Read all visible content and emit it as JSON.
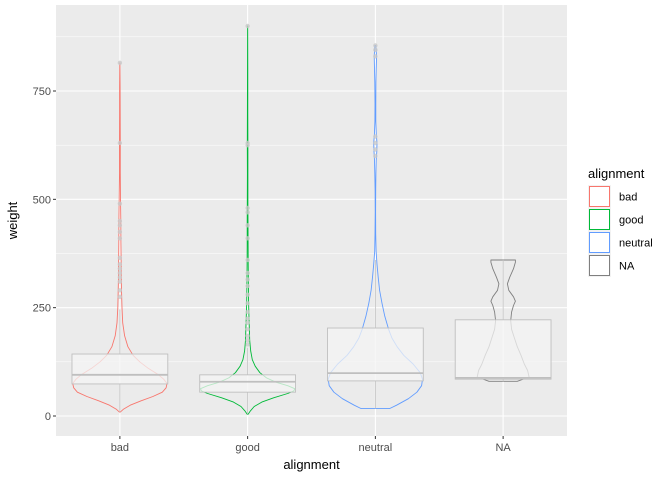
{
  "chart_data": {
    "type": "violin-boxplot",
    "title": "",
    "xlabel": "alignment",
    "ylabel": "weight",
    "ylim": [
      -35,
      930
    ],
    "yticks": [
      0,
      250,
      500,
      750
    ],
    "ytick_labels": [
      "0",
      "250",
      "500",
      "750"
    ],
    "categories": [
      "bad",
      "good",
      "neutral",
      "NA"
    ],
    "legend": {
      "title": "alignment",
      "position": "right",
      "entries": [
        {
          "label": "bad",
          "color": "#F8766D"
        },
        {
          "label": "good",
          "color": "#00BA38"
        },
        {
          "label": "neutral",
          "color": "#619CFF"
        },
        {
          "label": "NA",
          "color": "#7F7F7F"
        }
      ]
    },
    "box_fill": "#F4F4F4",
    "box_stroke": "#BFBFBF",
    "groups": [
      {
        "name": "bad",
        "color": "#F8766D",
        "box": {
          "q1": 74,
          "median": 95,
          "q3": 143,
          "whisker_low": 9,
          "whisker_high": 246
        },
        "violin": [
          [
            9,
            0.01
          ],
          [
            16,
            0.08
          ],
          [
            25,
            0.22
          ],
          [
            35,
            0.45
          ],
          [
            45,
            0.7
          ],
          [
            55,
            0.9
          ],
          [
            65,
            0.98
          ],
          [
            75,
            1.0
          ],
          [
            85,
            0.93
          ],
          [
            95,
            0.82
          ],
          [
            110,
            0.6
          ],
          [
            125,
            0.42
          ],
          [
            140,
            0.28
          ],
          [
            160,
            0.17
          ],
          [
            185,
            0.1
          ],
          [
            215,
            0.06
          ],
          [
            250,
            0.045
          ],
          [
            290,
            0.035
          ],
          [
            320,
            0.03
          ],
          [
            350,
            0.028
          ],
          [
            400,
            0.022
          ],
          [
            450,
            0.02
          ],
          [
            500,
            0.014
          ],
          [
            560,
            0.009
          ],
          [
            630,
            0.009
          ],
          [
            700,
            0.006
          ],
          [
            760,
            0.005
          ],
          [
            815,
            0.001
          ]
        ],
        "outliers": [
          275,
          290,
          310,
          320,
          330,
          340,
          350,
          365,
          410,
          425,
          440,
          450,
          490,
          630,
          815
        ]
      },
      {
        "name": "good",
        "color": "#00BA38",
        "box": {
          "q1": 55,
          "median": 79,
          "q3": 95,
          "whisker_low": 4,
          "whisker_high": 158
        },
        "violin": [
          [
            4,
            0.01
          ],
          [
            12,
            0.06
          ],
          [
            22,
            0.14
          ],
          [
            32,
            0.3
          ],
          [
            42,
            0.55
          ],
          [
            52,
            0.85
          ],
          [
            58,
            0.98
          ],
          [
            63,
            1.0
          ],
          [
            70,
            0.85
          ],
          [
            78,
            0.6
          ],
          [
            88,
            0.4
          ],
          [
            100,
            0.26
          ],
          [
            115,
            0.16
          ],
          [
            130,
            0.1
          ],
          [
            150,
            0.065
          ],
          [
            175,
            0.045
          ],
          [
            200,
            0.038
          ],
          [
            225,
            0.03
          ],
          [
            260,
            0.02
          ],
          [
            300,
            0.016
          ],
          [
            350,
            0.012
          ],
          [
            400,
            0.01
          ],
          [
            450,
            0.008
          ],
          [
            500,
            0.006
          ],
          [
            560,
            0.005
          ],
          [
            630,
            0.006
          ],
          [
            700,
            0.004
          ],
          [
            800,
            0.003
          ],
          [
            900,
            0.001
          ]
        ],
        "outliers": [
          165,
          175,
          185,
          200,
          215,
          225,
          240,
          260,
          280,
          300,
          315,
          330,
          360,
          410,
          440,
          470,
          480,
          625,
          630,
          900
        ]
      },
      {
        "name": "neutral",
        "color": "#619CFF",
        "box": {
          "q1": 81,
          "median": 99,
          "q3": 203,
          "whisker_low": 17,
          "whisker_high": 360
        },
        "violin": [
          [
            17,
            0.3
          ],
          [
            25,
            0.45
          ],
          [
            40,
            0.7
          ],
          [
            55,
            0.88
          ],
          [
            70,
            0.98
          ],
          [
            85,
            1.0
          ],
          [
            100,
            0.95
          ],
          [
            120,
            0.8
          ],
          [
            140,
            0.6
          ],
          [
            160,
            0.46
          ],
          [
            180,
            0.35
          ],
          [
            200,
            0.28
          ],
          [
            230,
            0.2
          ],
          [
            260,
            0.14
          ],
          [
            290,
            0.09
          ],
          [
            320,
            0.06
          ],
          [
            350,
            0.035
          ],
          [
            380,
            0.015
          ],
          [
            420,
            0.007
          ],
          [
            470,
            0.004
          ],
          [
            520,
            0.006
          ],
          [
            560,
            0.012
          ],
          [
            590,
            0.018
          ],
          [
            610,
            0.03
          ],
          [
            630,
            0.035
          ],
          [
            650,
            0.02
          ],
          [
            680,
            0.01
          ],
          [
            720,
            0.008
          ],
          [
            770,
            0.012
          ],
          [
            800,
            0.018
          ],
          [
            830,
            0.025
          ],
          [
            855,
            0.01
          ]
        ],
        "outliers": [
          600,
          615,
          630,
          645,
          830,
          845,
          855
        ]
      },
      {
        "name": "NA",
        "color": "#7F7F7F",
        "box": {
          "q1": 85,
          "median": 88,
          "q3": 222,
          "whisker_low": 80,
          "whisker_high": 360
        },
        "violin": [
          [
            80,
            0.3
          ],
          [
            90,
            0.55
          ],
          [
            105,
            0.52
          ],
          [
            120,
            0.45
          ],
          [
            140,
            0.38
          ],
          [
            160,
            0.3
          ],
          [
            180,
            0.24
          ],
          [
            200,
            0.18
          ],
          [
            220,
            0.16
          ],
          [
            240,
            0.18
          ],
          [
            255,
            0.22
          ],
          [
            265,
            0.26
          ],
          [
            275,
            0.22
          ],
          [
            290,
            0.12
          ],
          [
            305,
            0.09
          ],
          [
            320,
            0.14
          ],
          [
            340,
            0.22
          ],
          [
            355,
            0.26
          ],
          [
            360,
            0.26
          ]
        ],
        "outliers": []
      }
    ]
  }
}
